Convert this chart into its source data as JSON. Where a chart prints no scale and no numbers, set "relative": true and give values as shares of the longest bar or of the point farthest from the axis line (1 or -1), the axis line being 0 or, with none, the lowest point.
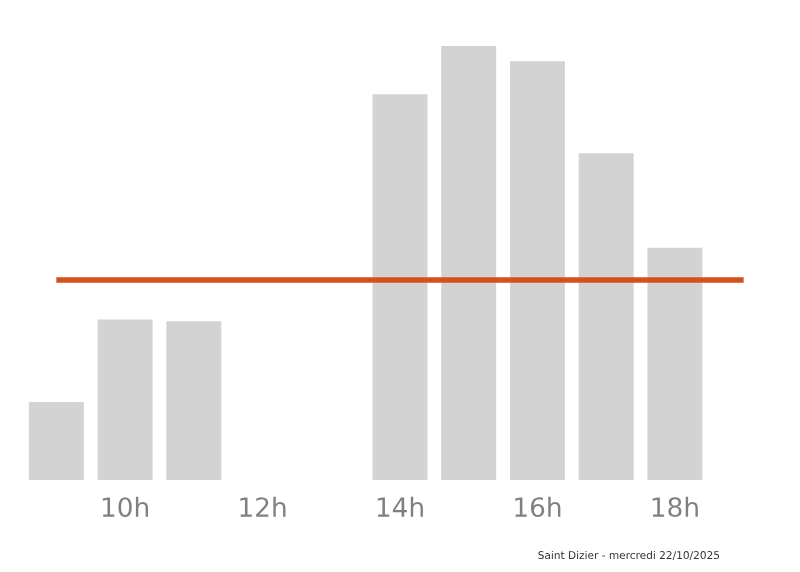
{
  "chart_data": {
    "type": "bar",
    "relative": true,
    "categories": [
      null,
      "10h",
      null,
      "12h",
      null,
      "14h",
      null,
      "16h",
      null,
      "18h",
      null
    ],
    "values": [
      0.18,
      0.37,
      0.366,
      0,
      0,
      0.889,
      1,
      0.965,
      0.753,
      0.535,
      0
    ],
    "color": "#d3d3d3",
    "ref_lines": [
      {
        "axis": "y",
        "value": 0.461,
        "color": "#d4501c"
      }
    ],
    "annotations": [
      "Saint Dizier - mercredi 22/10/2025"
    ],
    "grid": false,
    "legend": false
  }
}
